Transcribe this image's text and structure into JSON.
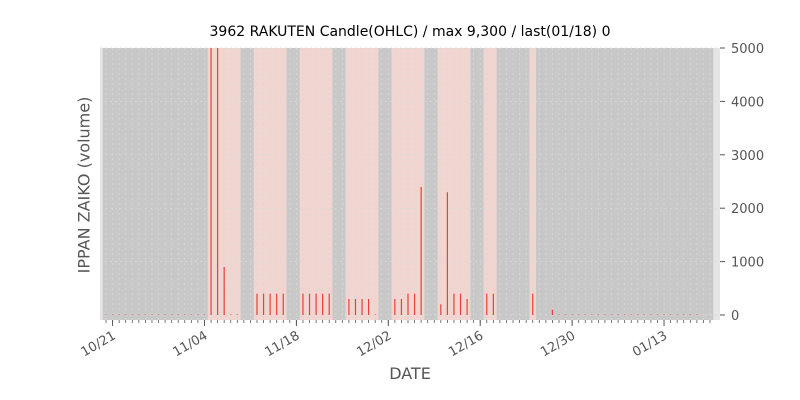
{
  "chart_data": {
    "type": "bar",
    "title": "3962 RAKUTEN Candle(OHLC) / max 9,300 / last(01/18) 0",
    "xlabel": "DATE",
    "ylabel": "IPPAN ZAIKO (volume)",
    "ylim": [
      0,
      5000
    ],
    "y_ticks": [
      "0",
      "1000",
      "2000",
      "3000",
      "4000",
      "5000"
    ],
    "y_tick_values": [
      0,
      1000,
      2000,
      3000,
      4000,
      5000
    ],
    "y_axis_side": "right",
    "x_ticks": [
      "10/21",
      "11/04",
      "11/18",
      "12/02",
      "12/16",
      "12/30",
      "01/13"
    ],
    "x_range": [
      "10/20",
      "01/20"
    ],
    "grid": true,
    "colors": {
      "plot_background": "#e5e5e5",
      "closed_band": "#c8c8c8",
      "active_band": "#f0d5d0",
      "bar": "#e8413a",
      "grid": "#d9d9d9",
      "tick_text": "#555555"
    },
    "active_ranges": [
      [
        "11/05",
        "11/09"
      ],
      [
        "11/12",
        "11/16"
      ],
      [
        "11/19",
        "11/23"
      ],
      [
        "11/26",
        "11/30"
      ],
      [
        "12/03",
        "12/07"
      ],
      [
        "12/10",
        "12/14"
      ],
      [
        "12/17",
        "12/18"
      ],
      [
        "12/24",
        "12/24"
      ]
    ],
    "series": [
      {
        "x": [
          "10/20",
          "10/21",
          "10/22",
          "10/23",
          "10/24",
          "10/25",
          "10/26",
          "10/27",
          "10/28",
          "10/29",
          "10/30",
          "10/31",
          "11/01",
          "11/02",
          "11/03",
          "11/04",
          "11/05",
          "11/06",
          "11/07",
          "11/08",
          "11/09",
          "11/12",
          "11/13",
          "11/14",
          "11/15",
          "11/16",
          "11/19",
          "11/20",
          "11/21",
          "11/22",
          "11/23",
          "11/26",
          "11/27",
          "11/28",
          "11/29",
          "11/30",
          "12/03",
          "12/04",
          "12/05",
          "12/06",
          "12/07",
          "12/10",
          "12/11",
          "12/12",
          "12/13",
          "12/14",
          "12/17",
          "12/18",
          "12/24",
          "12/27",
          "12/28",
          "12/29",
          "12/30",
          "12/31",
          "01/01",
          "01/02",
          "01/03",
          "01/04",
          "01/05",
          "01/06",
          "01/07",
          "01/08",
          "01/09",
          "01/10",
          "01/11",
          "01/12",
          "01/13",
          "01/14",
          "01/15",
          "01/16",
          "01/17",
          "01/18"
        ],
        "values": [
          0,
          0,
          0,
          0,
          0,
          0,
          0,
          0,
          0,
          0,
          0,
          0,
          0,
          0,
          0,
          0,
          5000,
          5000,
          900,
          0,
          0,
          400,
          400,
          400,
          400,
          400,
          400,
          400,
          400,
          400,
          400,
          300,
          300,
          300,
          300,
          0,
          300,
          300,
          400,
          400,
          2400,
          200,
          2300,
          400,
          400,
          300,
          400,
          400,
          400,
          100,
          0,
          0,
          0,
          0,
          0,
          0,
          0,
          0,
          0,
          0,
          0,
          0,
          0,
          0,
          0,
          0,
          0,
          0,
          0,
          0,
          0,
          0
        ]
      }
    ]
  }
}
